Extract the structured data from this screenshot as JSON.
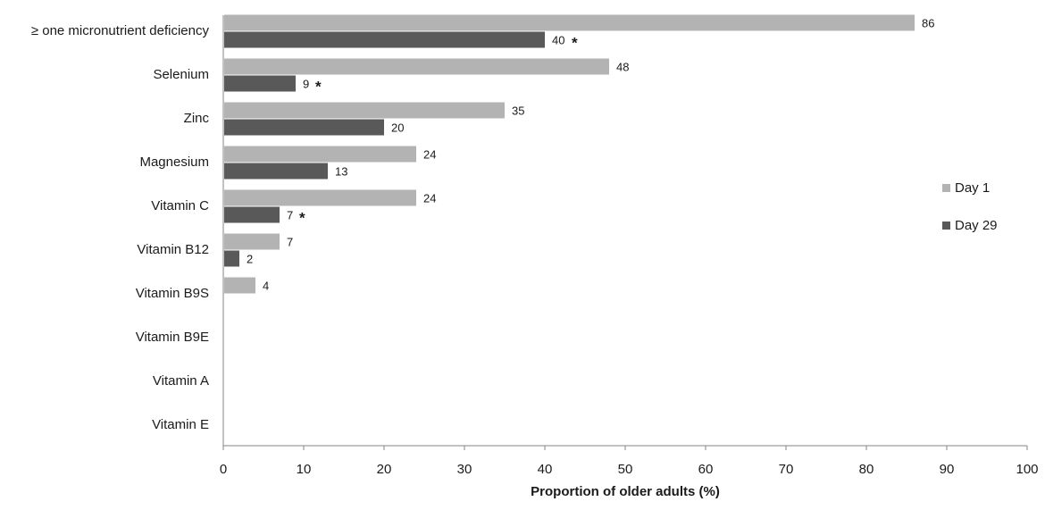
{
  "chart_data": {
    "type": "bar",
    "orientation": "horizontal",
    "categories": [
      "≥ one micronutrient  deficiency",
      "Selenium",
      "Zinc",
      "Magnesium",
      "Vitamin C",
      "Vitamin B12",
      "Vitamin B9S",
      "Vitamin B9E",
      "Vitamin A",
      "Vitamin E"
    ],
    "series": [
      {
        "name": "Day 1",
        "color": "#b3b3b3",
        "values": [
          86,
          48,
          35,
          24,
          24,
          7,
          4,
          null,
          null,
          null
        ]
      },
      {
        "name": "Day 29",
        "color": "#595959",
        "values": [
          40,
          9,
          20,
          13,
          7,
          2,
          null,
          null,
          null,
          null
        ]
      }
    ],
    "annotations": {
      "marker": "*",
      "series": "Day 29",
      "categories": [
        "≥ one micronutrient  deficiency",
        "Selenium",
        "Vitamin C"
      ]
    },
    "xlabel": "Proportion of older adults (%)",
    "ylabel": "",
    "title": "",
    "xlim": [
      0,
      100
    ],
    "xticks": [
      0,
      10,
      20,
      30,
      40,
      50,
      60,
      70,
      80,
      90,
      100
    ],
    "grid": false,
    "legend_position": "right"
  }
}
